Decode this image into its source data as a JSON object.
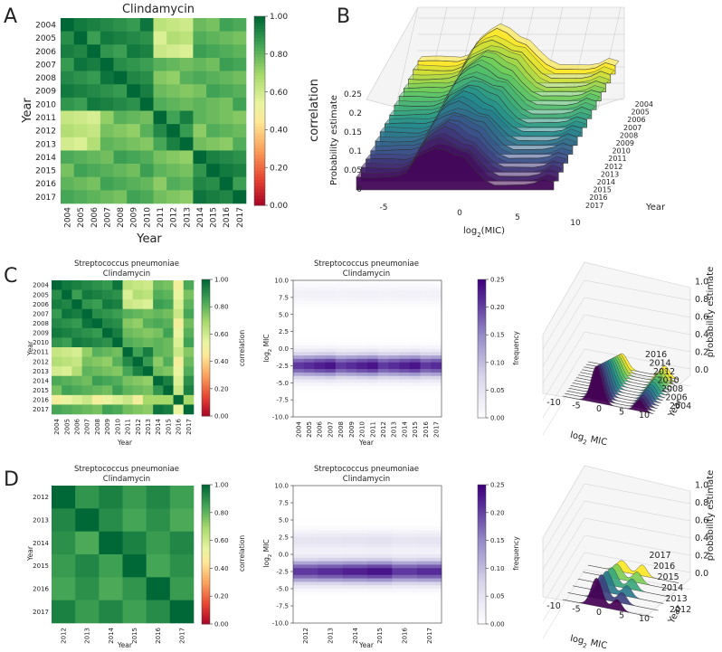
{
  "panel_letters": [
    "A",
    "B",
    "C",
    "D"
  ],
  "colorbar_ticks_corr": [
    "1.00",
    "0.80",
    "0.60",
    "0.40",
    "0.20",
    "0.00"
  ],
  "colorbar_ticks_freq": [
    "0.25",
    "0.20",
    "0.15",
    "0.10",
    "0.05",
    "0.00"
  ],
  "chart_data": [
    {
      "id": "A",
      "type": "heatmap",
      "title": "Clindamycin",
      "xlabel": "Year",
      "ylabel": "Year",
      "colorbar_label": "correlation",
      "colormap": "RdYlGn",
      "vmin": 0.0,
      "vmax": 1.0,
      "categories": [
        "2004",
        "2005",
        "2006",
        "2007",
        "2008",
        "2009",
        "2010",
        "2011",
        "2012",
        "2013",
        "2014",
        "2015",
        "2016",
        "2017"
      ]
    },
    {
      "id": "B",
      "type": "area",
      "title": "",
      "xlabel": "log2(MIC)",
      "ylabel": "Probability estimate",
      "zlabel": "Year",
      "x_ticks": [
        "-5",
        "0",
        "5",
        "10"
      ],
      "z_ticks": [
        "0",
        "0.05",
        "0.1",
        "0.15",
        "0.2",
        "0.25"
      ],
      "years": [
        "2004",
        "2005",
        "2006",
        "2007",
        "2008",
        "2009",
        "2010",
        "2011",
        "2012",
        "2013",
        "2014",
        "2015",
        "2016",
        "2017"
      ],
      "x": [
        -9,
        -8,
        -7,
        -6,
        -5,
        -4,
        -3,
        -2,
        -1,
        0,
        1,
        2,
        3,
        4,
        5,
        6,
        7,
        8,
        9,
        10,
        11
      ],
      "series_profile": [
        0.08,
        0.08,
        0.08,
        0.08,
        0.08,
        0.1,
        0.2,
        0.24,
        0.27,
        0.25,
        0.21,
        0.19,
        0.12,
        0.06,
        0.03,
        0.03,
        0.03,
        0.03,
        0.04,
        0.07,
        0.05
      ],
      "colormap": "viridis-reversed"
    },
    {
      "id": "C-left",
      "type": "heatmap",
      "title": "Streptococcus pneumoniae\nClindamycin",
      "xlabel": "Year",
      "ylabel": "Year",
      "colorbar_label": "correlation",
      "categories": [
        "2004",
        "2005",
        "2006",
        "2007",
        "2008",
        "2009",
        "2010",
        "2011",
        "2012",
        "2013",
        "2014",
        "2015",
        "2016",
        "2017"
      ]
    },
    {
      "id": "C-mid",
      "type": "heatmap",
      "title": "Streptococcus pneumoniae\nClindamycin",
      "xlabel": "Year",
      "ylabel": "log2 MIC",
      "colorbar_label": "frequency",
      "categories": [
        "2004",
        "2005",
        "2006",
        "2007",
        "2008",
        "2009",
        "2010",
        "2011",
        "2012",
        "2013",
        "2014",
        "2015",
        "2016",
        "2017"
      ],
      "y_ticks": [
        "10.0",
        "7.5",
        "5.0",
        "2.5",
        "0.0",
        "-2.5",
        "-5.0",
        "-7.5",
        "-10.0"
      ],
      "ylim": [
        -10,
        10
      ],
      "band_centers": [
        -2.5,
        8.0
      ],
      "band_peak": [
        0.26,
        0.03
      ]
    },
    {
      "id": "C-right",
      "type": "area",
      "xlabel": "log2 MIC",
      "ylabel": "probability estimate",
      "zlabel": "Year",
      "x_ticks": [
        "-10",
        "-5",
        "0",
        "5",
        "10"
      ],
      "z_ticks": [
        "0.0",
        "0.2",
        "0.4",
        "0.6",
        "0.8",
        "1.0"
      ],
      "year_ticks": [
        "2004",
        "2006",
        "2008",
        "2010",
        "2012",
        "2014",
        "2016"
      ],
      "n_series": 14
    },
    {
      "id": "D-left",
      "type": "heatmap",
      "title": "Streptococcus pneumoniae\nClindamycin",
      "xlabel": "Year",
      "ylabel": "Year",
      "colorbar_label": "correlation",
      "categories": [
        "2012",
        "2013",
        "2014",
        "2015",
        "2016",
        "2017"
      ]
    },
    {
      "id": "D-mid",
      "type": "heatmap",
      "title": "Streptococcus pneumoniae\nClindamycin",
      "xlabel": "Year",
      "ylabel": "log2 MIC",
      "colorbar_label": "frequency",
      "categories": [
        "2012",
        "2013",
        "2014",
        "2015",
        "2016",
        "2017"
      ],
      "y_ticks": [
        "10.0",
        "7.5",
        "5.0",
        "2.5",
        "0.0",
        "-2.5",
        "-5.0",
        "-7.5",
        "-10.0"
      ],
      "ylim": [
        -10,
        10
      ],
      "band_centers": [
        -2.5,
        2.0
      ],
      "band_peak": [
        0.26,
        0.06
      ]
    },
    {
      "id": "D-right",
      "type": "area",
      "xlabel": "log2 MIC",
      "ylabel": "probability estimate",
      "zlabel": "Year",
      "x_ticks": [
        "-10",
        "-5",
        "0",
        "5",
        "10"
      ],
      "z_ticks": [
        "0.0",
        "0.2",
        "0.4",
        "0.6",
        "0.8",
        "1.0"
      ],
      "year_ticks": [
        "2012",
        "2013",
        "2014",
        "2015",
        "2016",
        "2017"
      ],
      "n_series": 6
    }
  ]
}
